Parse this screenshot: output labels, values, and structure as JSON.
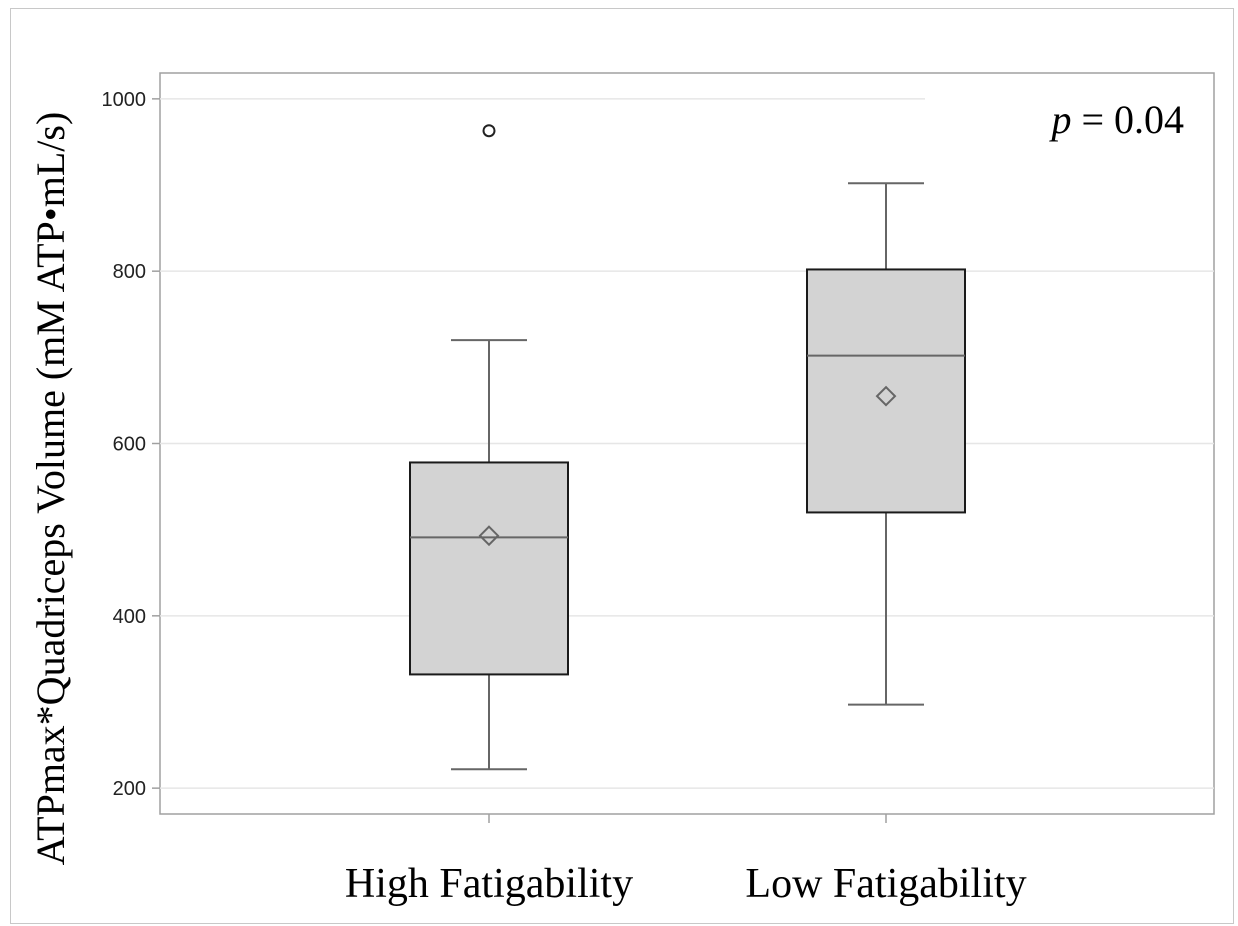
{
  "chart_data": {
    "type": "box",
    "ylabel": "ATPmax*Quadriceps Volume (mM ATP•mL/s)",
    "xlabel": "",
    "ylim": [
      170,
      1030
    ],
    "yticks": [
      200,
      400,
      600,
      800,
      1000
    ],
    "grid": true,
    "annotation": {
      "italic": "p",
      "text": " = 0.04"
    },
    "groups": [
      {
        "name": "High Fatigability",
        "min": 222,
        "q1": 332,
        "median": 491,
        "q3": 578,
        "max": 720,
        "mean": 493,
        "outliers": [
          963
        ]
      },
      {
        "name": "Low Fatigability",
        "min": 297,
        "q1": 520,
        "median": 702,
        "q3": 802,
        "max": 902,
        "mean": 655,
        "outliers": []
      }
    ],
    "colors": {
      "box_fill": "#d3d3d3",
      "box_stroke": "#1a1a1a",
      "whisker": "#666666",
      "grid": "#e6e6e6",
      "axis": "#a0a0a0"
    }
  }
}
